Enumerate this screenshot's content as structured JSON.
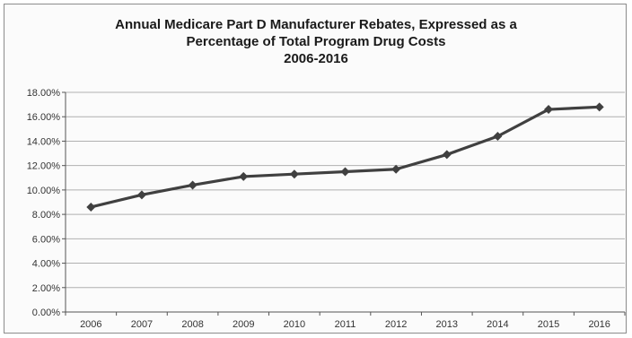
{
  "chart_data": {
    "type": "line",
    "title": [
      "Annual Medicare Part D Manufacturer Rebates, Expressed as a",
      "Percentage of Total Program Drug Costs",
      "2006-2016"
    ],
    "xlabel": "",
    "ylabel": "",
    "categories": [
      "2006",
      "2007",
      "2008",
      "2009",
      "2010",
      "2011",
      "2012",
      "2013",
      "2014",
      "2015",
      "2016"
    ],
    "series": [
      {
        "values": [
          8.6,
          9.6,
          10.4,
          11.1,
          11.3,
          11.5,
          11.7,
          12.9,
          14.4,
          16.6,
          16.8
        ]
      }
    ],
    "ylim": [
      0,
      18
    ],
    "yticks": [
      "0.00%",
      "2.00%",
      "4.00%",
      "6.00%",
      "8.00%",
      "10.00%",
      "12.00%",
      "14.00%",
      "16.00%",
      "18.00%"
    ],
    "grid": true,
    "line_color": "#404040",
    "grid_color": "#b0b0b0"
  }
}
